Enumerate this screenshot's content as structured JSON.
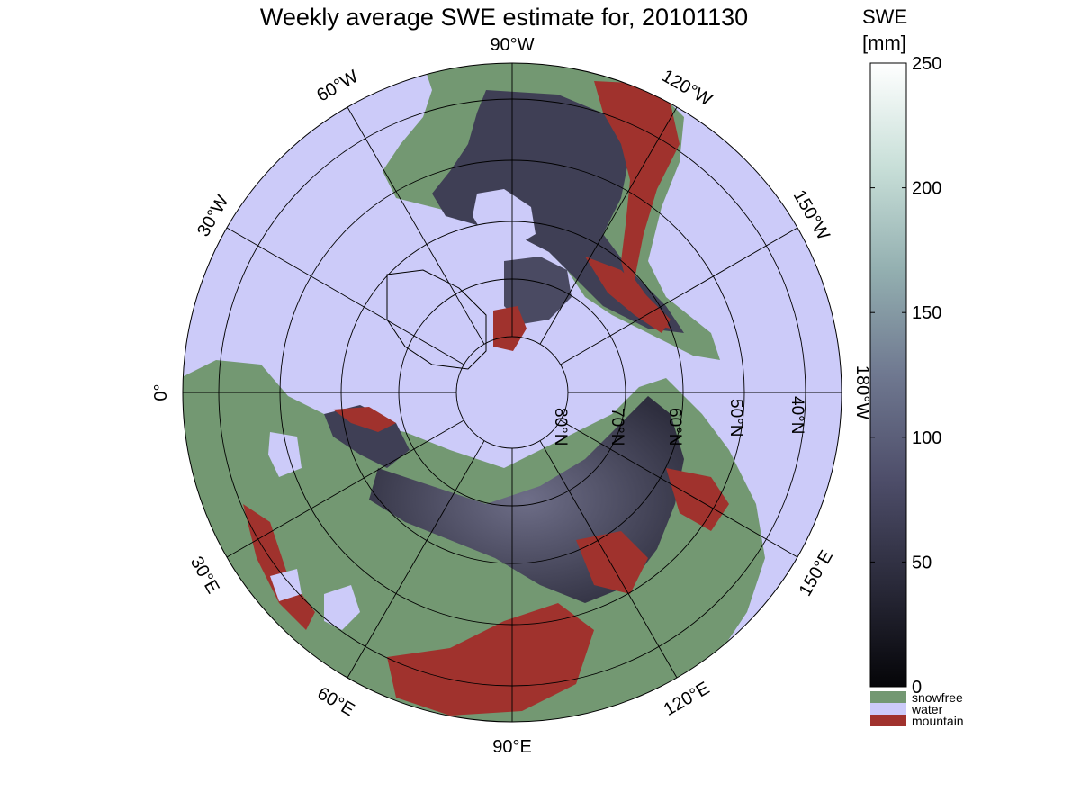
{
  "title": "Weekly average SWE estimate for, 20101130",
  "colorbar": {
    "label_line1": "SWE",
    "label_line2": "[mm]",
    "ticks": [
      {
        "value": 0,
        "label": "0"
      },
      {
        "value": 50,
        "label": "50"
      },
      {
        "value": 100,
        "label": "100"
      },
      {
        "value": 150,
        "label": "150"
      },
      {
        "value": 200,
        "label": "200"
      },
      {
        "value": 250,
        "label": "250"
      }
    ],
    "range": [
      0,
      250
    ],
    "gradient_colors": [
      "#050508",
      "#2a2a3a",
      "#4e4e6a",
      "#6f7890",
      "#93afb0",
      "#c8dfd8",
      "#ffffff"
    ],
    "legend": [
      {
        "label": "snowfree",
        "color": "#739872"
      },
      {
        "label": "water",
        "color": "#cccbf9"
      },
      {
        "label": "mountain",
        "color": "#a0322d"
      }
    ]
  },
  "map": {
    "projection": "north polar stereographic",
    "ocean_color": "#cccbf9",
    "land_snowfree_color": "#739872",
    "snow_color": "#3c3c52",
    "mountain_color": "#a0322d",
    "latitude_labels": [
      "80°N",
      "70°N",
      "60°N",
      "50°N",
      "40°N"
    ],
    "longitude_labels": [
      {
        "lon": 0,
        "text": "0°"
      },
      {
        "lon": 30,
        "text": "30°E"
      },
      {
        "lon": 60,
        "text": "60°E"
      },
      {
        "lon": 90,
        "text": "90°E"
      },
      {
        "lon": 120,
        "text": "120°E"
      },
      {
        "lon": 150,
        "text": "150°E"
      },
      {
        "lon": 180,
        "text": "180°W"
      },
      {
        "lon": -150,
        "text": "150°W"
      },
      {
        "lon": -120,
        "text": "120°W"
      },
      {
        "lon": -90,
        "text": "90°W"
      },
      {
        "lon": -60,
        "text": "60°W"
      },
      {
        "lon": -30,
        "text": "30°W"
      }
    ]
  }
}
